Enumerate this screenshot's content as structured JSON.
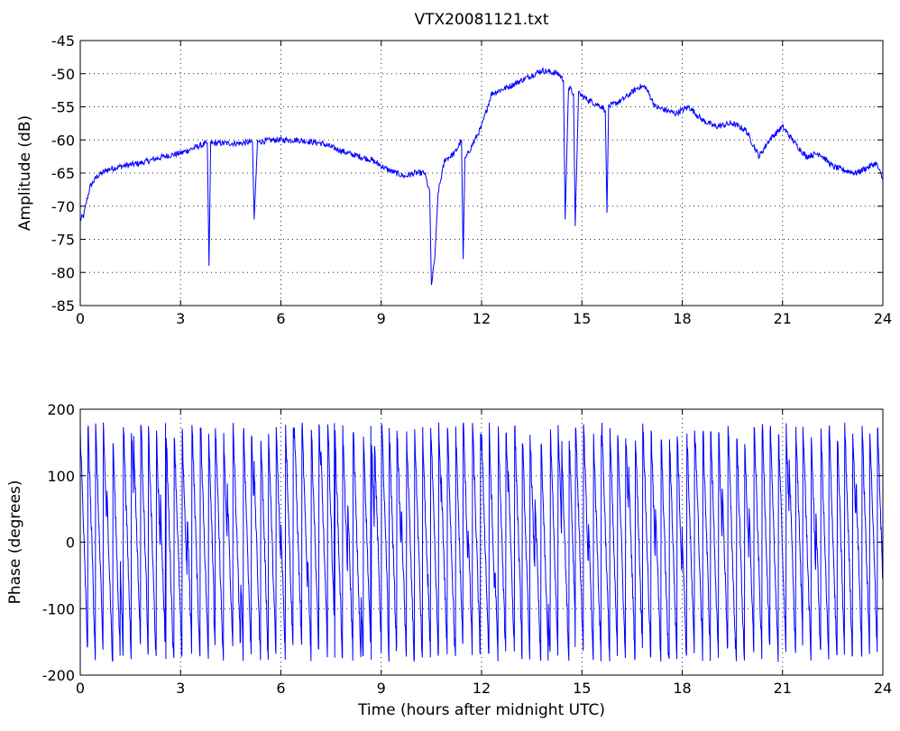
{
  "figure_title": "VTX20081121.txt",
  "colors": {
    "series": "#0000ff",
    "axis": "#000000",
    "background": "#ffffff"
  },
  "chart_data": [
    {
      "type": "line",
      "title": "VTX20081121.txt",
      "xlabel": "",
      "ylabel": "Amplitude (dB)",
      "xlim": [
        0,
        24
      ],
      "ylim": [
        -85,
        -45
      ],
      "xticks": [
        0,
        3,
        6,
        9,
        12,
        15,
        18,
        21,
        24
      ],
      "yticks": [
        -45,
        -50,
        -55,
        -60,
        -65,
        -70,
        -75,
        -80,
        -85
      ],
      "grid": true,
      "series": [
        {
          "x": [
            0,
            0.1,
            0.2,
            0.3,
            0.5,
            0.8,
            1.2,
            1.8,
            2.5,
            3.0,
            3.5,
            3.8,
            3.85,
            3.9,
            4.2,
            4.8,
            5.15,
            5.2,
            5.3,
            5.8,
            6.5,
            7.2,
            8.0,
            8.7,
            9.2,
            9.7,
            10.0,
            10.3,
            10.45,
            10.5,
            10.6,
            10.7,
            10.9,
            11.2,
            11.4,
            11.45,
            11.5,
            11.8,
            12.0,
            12.3,
            12.8,
            13.2,
            13.8,
            14.3,
            14.45,
            14.5,
            14.6,
            14.75,
            14.8,
            14.9,
            15.2,
            15.6,
            15.7,
            15.75,
            15.8,
            16.2,
            16.7,
            16.9,
            17.2,
            17.8,
            18.2,
            18.6,
            19.0,
            19.5,
            19.9,
            20.3,
            20.6,
            21.0,
            21.3,
            21.7,
            22.1,
            22.5,
            22.8,
            23.2,
            23.6,
            23.8,
            24.0
          ],
          "y": [
            -72,
            -71.5,
            -69,
            -67,
            -65.5,
            -64.5,
            -64,
            -63.5,
            -62.5,
            -62,
            -61,
            -60.5,
            -79,
            -60.5,
            -60.5,
            -60.5,
            -60.3,
            -72,
            -60.3,
            -60,
            -60,
            -60.5,
            -62,
            -63,
            -64.5,
            -65.5,
            -65,
            -65,
            -68,
            -82,
            -78,
            -68,
            -63,
            -62,
            -60,
            -78,
            -63,
            -60,
            -58,
            -53,
            -52,
            -51,
            -49.5,
            -50,
            -51,
            -72,
            -52,
            -53,
            -73,
            -53,
            -54,
            -55,
            -55.5,
            -71,
            -55,
            -54,
            -52,
            -52,
            -55,
            -56,
            -55,
            -57,
            -58,
            -57.5,
            -58.5,
            -62.5,
            -60,
            -58,
            -60,
            -62.5,
            -62,
            -64,
            -64.5,
            -65,
            -64,
            -63.5,
            -66
          ]
        }
      ]
    },
    {
      "type": "line",
      "title": "",
      "xlabel": "Time (hours after midnight UTC)",
      "ylabel": "Phase (degrees)",
      "xlim": [
        0,
        24
      ],
      "ylim": [
        -200,
        200
      ],
      "xticks": [
        0,
        3,
        6,
        9,
        12,
        15,
        18,
        21,
        24
      ],
      "yticks": [
        200,
        100,
        0,
        -100,
        -200
      ],
      "grid": true,
      "series": [
        {
          "wrap_range": [
            -180,
            180
          ],
          "x": [
            0,
            0.4,
            0.8,
            1.2,
            1.6,
            2.0,
            2.4,
            2.8,
            3.2,
            3.6,
            4.0,
            4.4,
            4.8,
            5.2,
            5.6,
            6.0,
            6.4,
            6.8,
            7.2,
            7.6,
            8.0,
            8.4,
            8.8,
            9.2,
            9.6,
            10.0,
            10.4,
            10.8,
            11.2,
            11.6,
            12.0,
            12.4,
            12.8,
            13.2,
            13.6,
            14.0,
            14.4,
            14.8,
            15.2,
            15.6,
            16.0,
            16.4,
            16.8,
            17.2,
            17.6,
            18.0,
            18.4,
            18.8,
            19.2,
            19.6,
            20.0,
            20.4,
            20.8,
            21.2,
            21.6,
            22.0,
            22.4,
            22.8,
            23.2,
            23.6,
            24.0
          ],
          "y": [
            170,
            -95,
            70,
            -40,
            150,
            -130,
            60,
            -175,
            40,
            175,
            -120,
            80,
            -60,
            110,
            -150,
            30,
            175,
            -20,
            130,
            -170,
            60,
            -90,
            150,
            -130,
            50,
            170,
            -60,
            90,
            -150,
            20,
            160,
            -40,
            110,
            -170,
            70,
            -100,
            140,
            -160,
            30,
            175,
            -80,
            110,
            -140,
            60,
            -170,
            20,
            150,
            -110,
            80,
            -150,
            50,
            170,
            -70,
            120,
            -160,
            40,
            170,
            -90,
            90,
            -170,
            20
          ]
        }
      ]
    }
  ]
}
